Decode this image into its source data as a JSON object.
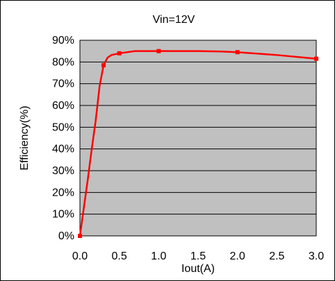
{
  "chart_data": {
    "type": "line",
    "title": "Vin=12V",
    "xlabel": "Iout(A)",
    "ylabel": "Efficiency(%)",
    "x_ticks": [
      "0.0",
      "0.5",
      "1.0",
      "1.5",
      "2.0",
      "2.5",
      "3.0"
    ],
    "y_ticks": [
      "0%",
      "10%",
      "20%",
      "30%",
      "40%",
      "50%",
      "60%",
      "70%",
      "80%",
      "90%"
    ],
    "xlim": [
      0,
      3
    ],
    "ylim": [
      0,
      90
    ],
    "grid": "horizontal",
    "series": [
      {
        "markers": [
          {
            "x": 0.0,
            "y": 0
          },
          {
            "x": 0.3,
            "y": 78.5
          },
          {
            "x": 0.5,
            "y": 84
          },
          {
            "x": 1.0,
            "y": 85
          },
          {
            "x": 2.0,
            "y": 84.5
          },
          {
            "x": 3.0,
            "y": 81.5
          }
        ],
        "curve": [
          {
            "x": 0.0,
            "y": 0
          },
          {
            "x": 0.05,
            "y": 13
          },
          {
            "x": 0.1,
            "y": 26
          },
          {
            "x": 0.15,
            "y": 40
          },
          {
            "x": 0.2,
            "y": 53
          },
          {
            "x": 0.25,
            "y": 69
          },
          {
            "x": 0.3,
            "y": 78.5
          },
          {
            "x": 0.35,
            "y": 82
          },
          {
            "x": 0.4,
            "y": 83.2
          },
          {
            "x": 0.5,
            "y": 84
          },
          {
            "x": 0.7,
            "y": 85
          },
          {
            "x": 1.0,
            "y": 85
          },
          {
            "x": 1.5,
            "y": 85
          },
          {
            "x": 1.8,
            "y": 84.8
          },
          {
            "x": 2.0,
            "y": 84.5
          },
          {
            "x": 2.5,
            "y": 83.2
          },
          {
            "x": 3.0,
            "y": 81.5
          }
        ]
      }
    ]
  },
  "colors": {
    "plot_background": "#c0c0c0",
    "series_line": "#ff0000",
    "grid": "#000000",
    "outer_border": "#000000"
  }
}
